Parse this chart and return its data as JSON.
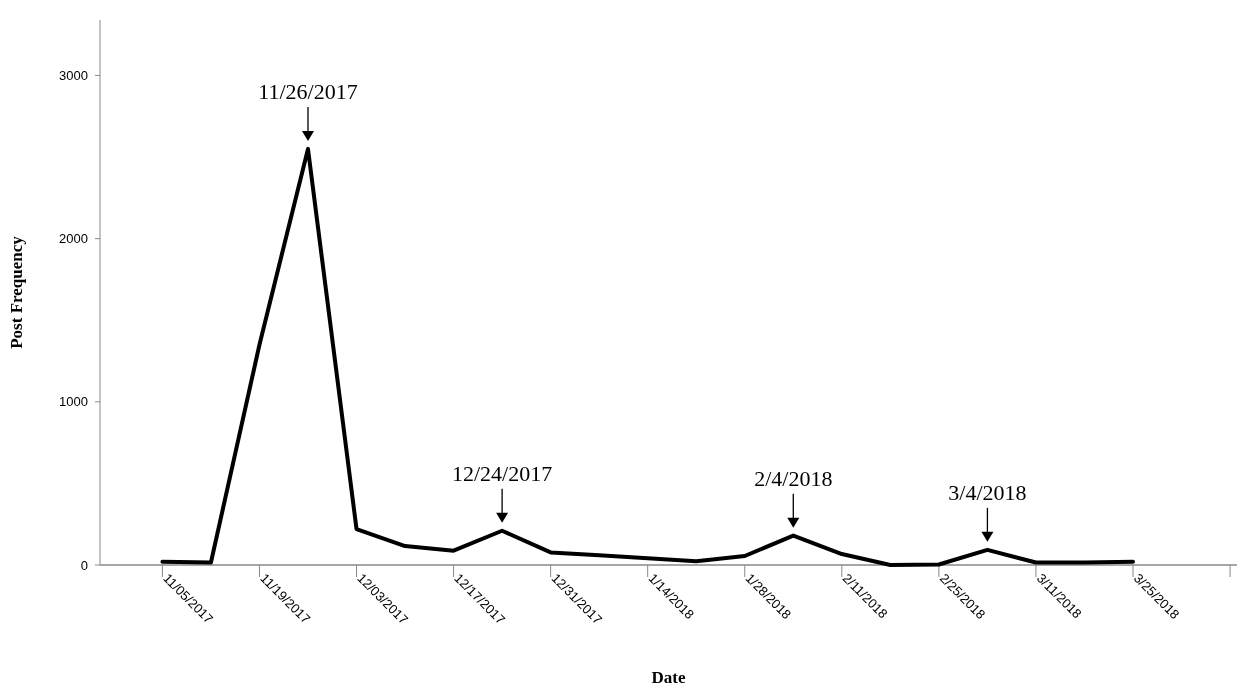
{
  "chart_data": {
    "type": "line",
    "xlabel": "Date",
    "ylabel": "Post Frequency",
    "x": [
      "2017-11-05",
      "2017-11-12",
      "2017-11-19",
      "2017-11-26",
      "2017-12-03",
      "2017-12-10",
      "2017-12-17",
      "2017-12-24",
      "2017-12-31",
      "2018-01-07",
      "2018-01-14",
      "2018-01-21",
      "2018-01-28",
      "2018-02-04",
      "2018-02-11",
      "2018-02-18",
      "2018-02-25",
      "2018-03-04",
      "2018-03-11",
      "2018-03-18",
      "2018-03-25"
    ],
    "series": [
      {
        "color": "#000000",
        "values": [
          20,
          15,
          1350,
          2550,
          220,
          116,
          88,
          210,
          77,
          60,
          42,
          23,
          55,
          180,
          67,
          0,
          3,
          93,
          15,
          15,
          20
        ]
      }
    ],
    "xlim": [
      "2017-10-27",
      "2018-04-09"
    ],
    "xticks": [
      {
        "value": "2017-11-05",
        "label": "11/05/2017"
      },
      {
        "value": "2017-11-19",
        "label": "11/19/2017"
      },
      {
        "value": "2017-12-03",
        "label": "12/03/2017"
      },
      {
        "value": "2017-12-17",
        "label": "12/17/2017"
      },
      {
        "value": "2017-12-31",
        "label": "12/31/2017"
      },
      {
        "value": "2018-01-14",
        "label": "1/14/2018"
      },
      {
        "value": "2018-01-28",
        "label": "1/28/2018"
      },
      {
        "value": "2018-02-11",
        "label": "2/11/2018"
      },
      {
        "value": "2018-02-25",
        "label": "2/25/2018"
      },
      {
        "value": "2018-03-11",
        "label": "3/11/2018"
      },
      {
        "value": "2018-03-25",
        "label": "3/25/2018"
      },
      {
        "value": "2018-04-08",
        "label": null
      }
    ],
    "ylim": [
      0,
      3340
    ],
    "yticks": [
      0,
      1000,
      2000,
      3000
    ],
    "grid": false,
    "marker": "none",
    "line_style": "solid",
    "annotations": [
      {
        "text": "11/26/2017",
        "x": "2017-11-26",
        "y": 2550
      },
      {
        "text": "12/24/2017",
        "x": "2017-12-24",
        "y": 210
      },
      {
        "text": "2/4/2018",
        "x": "2018-02-04",
        "y": 180
      },
      {
        "text": "3/4/2018",
        "x": "2018-03-04",
        "y": 93
      }
    ]
  }
}
